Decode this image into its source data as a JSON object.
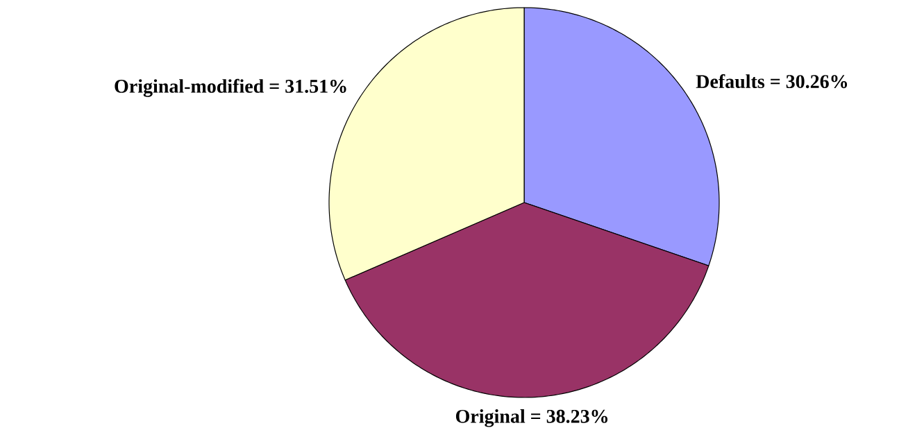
{
  "chart_data": {
    "type": "pie",
    "categories": [
      "Defaults",
      "Original",
      "Original-modified"
    ],
    "values": [
      30.26,
      38.23,
      31.51
    ],
    "value_labels": [
      "= 30.26%",
      "= 38.23%",
      "= 31.51%"
    ],
    "colors": [
      "#9999ff",
      "#993366",
      "#ffffcc"
    ]
  }
}
